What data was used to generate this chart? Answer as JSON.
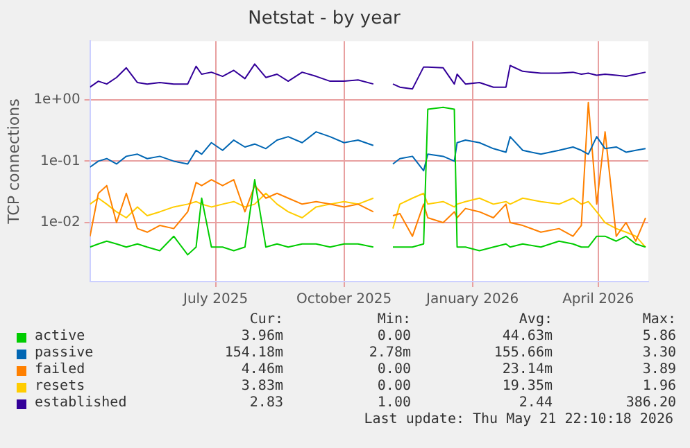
{
  "chart_data": {
    "type": "line",
    "title": "Netstat - by year",
    "ylabel": "TCP connections",
    "log": "y",
    "grid": true,
    "legend": "bottom",
    "marker": "none",
    "line_style": "solid",
    "x": [
      "2025-04-16",
      "2025-04-22",
      "2025-04-28",
      "2025-05-05",
      "2025-05-12",
      "2025-05-20",
      "2025-05-27",
      "2025-06-05",
      "2025-06-15",
      "2025-06-25",
      "2025-07-01",
      "2025-07-05",
      "2025-07-12",
      "2025-07-20",
      "2025-07-28",
      "2025-08-05",
      "2025-08-12",
      "2025-08-20",
      "2025-08-28",
      "2025-09-05",
      "2025-09-15",
      "2025-09-25",
      "2025-10-05",
      "2025-10-15",
      "2025-10-25",
      "2025-11-05",
      "2025-11-14",
      "2025-11-19",
      "2025-11-24",
      "2025-12-03",
      "2025-12-11",
      "2025-12-14",
      "2025-12-25",
      "2026-01-02",
      "2026-01-04",
      "2026-01-10",
      "2026-01-20",
      "2026-01-30",
      "2026-02-08",
      "2026-02-11",
      "2026-02-20",
      "2026-03-05",
      "2026-03-18",
      "2026-03-28",
      "2026-04-03",
      "2026-04-08",
      "2026-04-14",
      "2026-04-20",
      "2026-04-28",
      "2026-05-05",
      "2026-05-12",
      "2026-05-19"
    ],
    "xlim": [
      "2025-04-16",
      "2026-05-21"
    ],
    "xticks": [
      {
        "value": "2025-07-15",
        "label": "July 2025"
      },
      {
        "value": "2025-10-15",
        "label": "October 2025"
      },
      {
        "value": "2026-01-15",
        "label": "January 2026"
      },
      {
        "value": "2026-04-15",
        "label": "April 2026"
      }
    ],
    "ylim": [
      0.0011,
      9
    ],
    "yticks": [
      {
        "value": 0.01,
        "label": "1e-02"
      },
      {
        "value": 0.1,
        "label": "1e-01"
      },
      {
        "value": 1,
        "label": "1e+00"
      }
    ],
    "series": [
      {
        "name": "active",
        "color": "#00cc00",
        "values": [
          0.004,
          0.0045,
          0.005,
          0.0045,
          0.004,
          0.0045,
          0.004,
          0.0035,
          0.006,
          0.003,
          0.004,
          0.025,
          0.004,
          0.004,
          0.0035,
          0.004,
          0.05,
          0.004,
          0.0045,
          0.004,
          0.0045,
          0.0045,
          0.004,
          0.0045,
          0.0045,
          0.004,
          null,
          0.004,
          0.004,
          0.004,
          0.0045,
          0.7,
          0.75,
          0.7,
          0.004,
          0.004,
          0.0035,
          0.004,
          0.0045,
          0.004,
          0.0045,
          0.004,
          0.005,
          0.0045,
          0.004,
          0.004,
          0.006,
          0.006,
          0.005,
          0.006,
          0.0045,
          0.004
        ]
      },
      {
        "name": "passive",
        "color": "#0066b3",
        "values": [
          0.08,
          0.1,
          0.11,
          0.09,
          0.12,
          0.13,
          0.11,
          0.12,
          0.1,
          0.09,
          0.15,
          0.13,
          0.2,
          0.15,
          0.22,
          0.17,
          0.19,
          0.16,
          0.22,
          0.25,
          0.2,
          0.3,
          0.25,
          0.2,
          0.22,
          0.18,
          null,
          0.09,
          0.11,
          0.12,
          0.07,
          0.13,
          0.12,
          0.1,
          0.2,
          0.22,
          0.2,
          0.16,
          0.14,
          0.25,
          0.15,
          0.13,
          0.15,
          0.17,
          0.15,
          0.13,
          0.25,
          0.16,
          0.17,
          0.14,
          0.15,
          0.16
        ]
      },
      {
        "name": "failed",
        "color": "#ff8000",
        "values": [
          0.006,
          0.03,
          0.04,
          0.01,
          0.03,
          0.008,
          0.007,
          0.009,
          0.008,
          0.015,
          0.045,
          0.04,
          0.05,
          0.04,
          0.05,
          0.015,
          0.04,
          0.025,
          0.03,
          0.025,
          0.02,
          0.022,
          0.02,
          0.018,
          0.02,
          0.015,
          null,
          0.013,
          0.014,
          0.006,
          0.02,
          0.012,
          0.01,
          0.015,
          0.012,
          0.017,
          0.015,
          0.012,
          0.02,
          0.01,
          0.009,
          0.007,
          0.008,
          0.006,
          0.009,
          0.9,
          0.02,
          0.3,
          0.006,
          0.01,
          0.005,
          0.012
        ]
      },
      {
        "name": "resets",
        "color": "#ffcc00",
        "values": [
          0.02,
          0.025,
          0.02,
          0.015,
          0.012,
          0.018,
          0.013,
          0.015,
          0.018,
          0.02,
          0.022,
          0.02,
          0.018,
          0.02,
          0.022,
          0.018,
          0.02,
          0.03,
          0.02,
          0.015,
          0.012,
          0.018,
          0.02,
          0.022,
          0.02,
          0.025,
          null,
          0.008,
          0.02,
          0.025,
          0.03,
          0.02,
          0.022,
          0.018,
          0.02,
          0.022,
          0.025,
          0.02,
          0.022,
          0.02,
          0.025,
          0.022,
          0.02,
          0.025,
          0.02,
          0.022,
          0.015,
          0.01,
          0.008,
          0.007,
          0.006,
          0.004
        ]
      },
      {
        "name": "established",
        "color": "#330099",
        "values": [
          1.6,
          2.0,
          1.8,
          2.3,
          3.3,
          1.9,
          1.8,
          1.9,
          1.8,
          1.8,
          3.5,
          2.6,
          2.8,
          2.4,
          3.0,
          2.2,
          3.8,
          2.3,
          2.6,
          2.0,
          2.8,
          2.4,
          2.0,
          2.0,
          2.1,
          1.8,
          null,
          1.8,
          1.6,
          1.5,
          3.4,
          3.4,
          3.3,
          1.8,
          2.6,
          1.8,
          1.9,
          1.6,
          1.6,
          3.6,
          2.9,
          2.7,
          2.7,
          2.8,
          2.6,
          2.7,
          2.5,
          2.6,
          2.5,
          2.4,
          2.6,
          2.8
        ]
      }
    ],
    "annotations": [
      "Cur:",
      "Min:",
      "Avg:",
      "Max:",
      "3.96m",
      "0.00",
      "44.63m",
      "5.86",
      "154.18m",
      "2.78m",
      "155.66m",
      "3.30",
      "4.46m",
      "0.00",
      "23.14m",
      "3.89",
      "3.83m",
      "0.00",
      "19.35m",
      "1.96",
      "2.83",
      "1.00",
      "2.44",
      "386.20",
      "Last update: Thu May 21 22:10:18 2026"
    ]
  }
}
